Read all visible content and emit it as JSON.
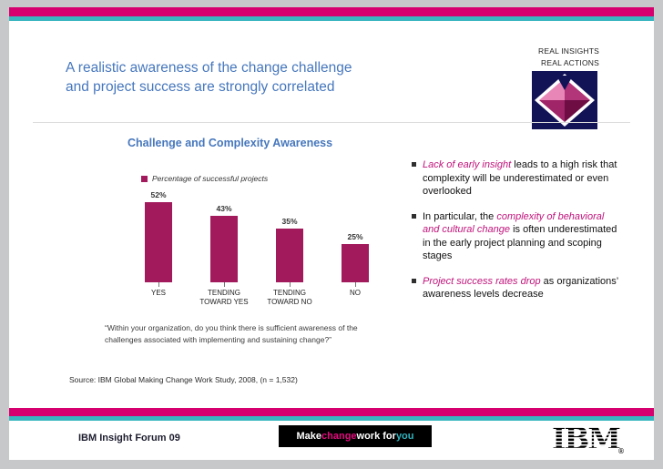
{
  "header": {
    "brand_lines": [
      "REAL INSIGHTS",
      "REAL ACTIONS"
    ],
    "title": "A realistic awareness of the change challenge\nand project success are strongly correlated"
  },
  "chart_data": {
    "type": "bar",
    "title": "Challenge and Complexity Awareness",
    "legend": "Percentage of successful projects",
    "categories": [
      "YES",
      "TENDING\nTOWARD YES",
      "TENDING\nTOWARD NO",
      "NO"
    ],
    "values": [
      52,
      43,
      35,
      25
    ],
    "value_labels": [
      "52%",
      "43%",
      "35%",
      "25%"
    ],
    "bar_color": "#a21a5c",
    "ylim": [
      0,
      60
    ],
    "grid": false,
    "legend_position": "top-left"
  },
  "quote": "“Within your organization, do you think there is sufficient awareness of the challenges associated with implementing and sustaining change?”",
  "bullets": [
    {
      "prefix": "",
      "highlight": "Lack of early insight",
      "rest": " leads to a high risk that complexity will be underestimated or even overlooked"
    },
    {
      "prefix": "In particular, the ",
      "highlight": "complexity of behavioral and cultural change",
      "rest": " is often underestimated in the early project planning and scoping stages"
    },
    {
      "prefix": "",
      "highlight": "Project success rates drop",
      "rest": " as organizations’ awareness levels decrease"
    }
  ],
  "source": "Source: IBM Global Making Change Work Study, 2008, (n = 1,532)",
  "footer": {
    "left": "IBM Insight Forum 09",
    "tagline": [
      {
        "text": "Make ",
        "color": "#ffffff"
      },
      {
        "text": "change",
        "color": "#e3097e"
      },
      {
        "text": " work for ",
        "color": "#ffffff"
      },
      {
        "text": "you",
        "color": "#2fb4bf"
      }
    ],
    "logo": "IBM"
  },
  "colors": {
    "stripe_magenta": "#d6006e",
    "stripe_teal": "#3ab6c0",
    "title_blue": "#4677bd",
    "bar_magenta": "#a21a5c",
    "highlight_magenta": "#c0137b",
    "footer_bar_black": "#000000"
  }
}
